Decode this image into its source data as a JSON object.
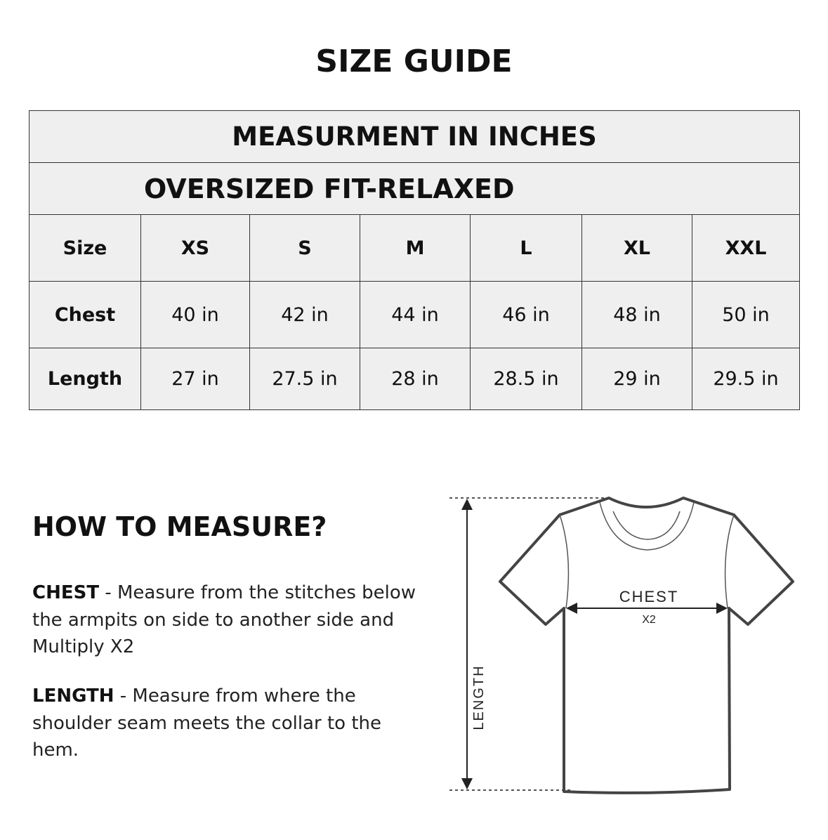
{
  "title": "SIZE GUIDE",
  "table": {
    "heading": "MEASURMENT IN INCHES",
    "subheading": "OVERSIZED FIT-RELAXED",
    "columns": [
      "Size",
      "XS",
      "S",
      "M",
      "L",
      "XL",
      "XXL"
    ],
    "rows": [
      {
        "label": "Chest",
        "values": [
          "40 in",
          "42 in",
          "44 in",
          "46 in",
          "48 in",
          "50 in"
        ]
      },
      {
        "label": "Length",
        "values": [
          "27 in",
          "27.5 in",
          "28 in",
          "28.5 in",
          "29 in",
          "29.5 in"
        ]
      }
    ],
    "background": "#efefef"
  },
  "how_to": {
    "heading": "HOW TO MEASURE?",
    "chest_term": "CHEST",
    "chest_text": " - Measure from the stitches below the armpits on side to another side and Multiply X2",
    "length_term": "LENGTH",
    "length_text": " - Measure from where the shoulder seam meets the collar to the hem."
  },
  "diagram": {
    "chest_label": "CHEST",
    "chest_multiplier": "X2",
    "length_label": "LENGTH"
  }
}
